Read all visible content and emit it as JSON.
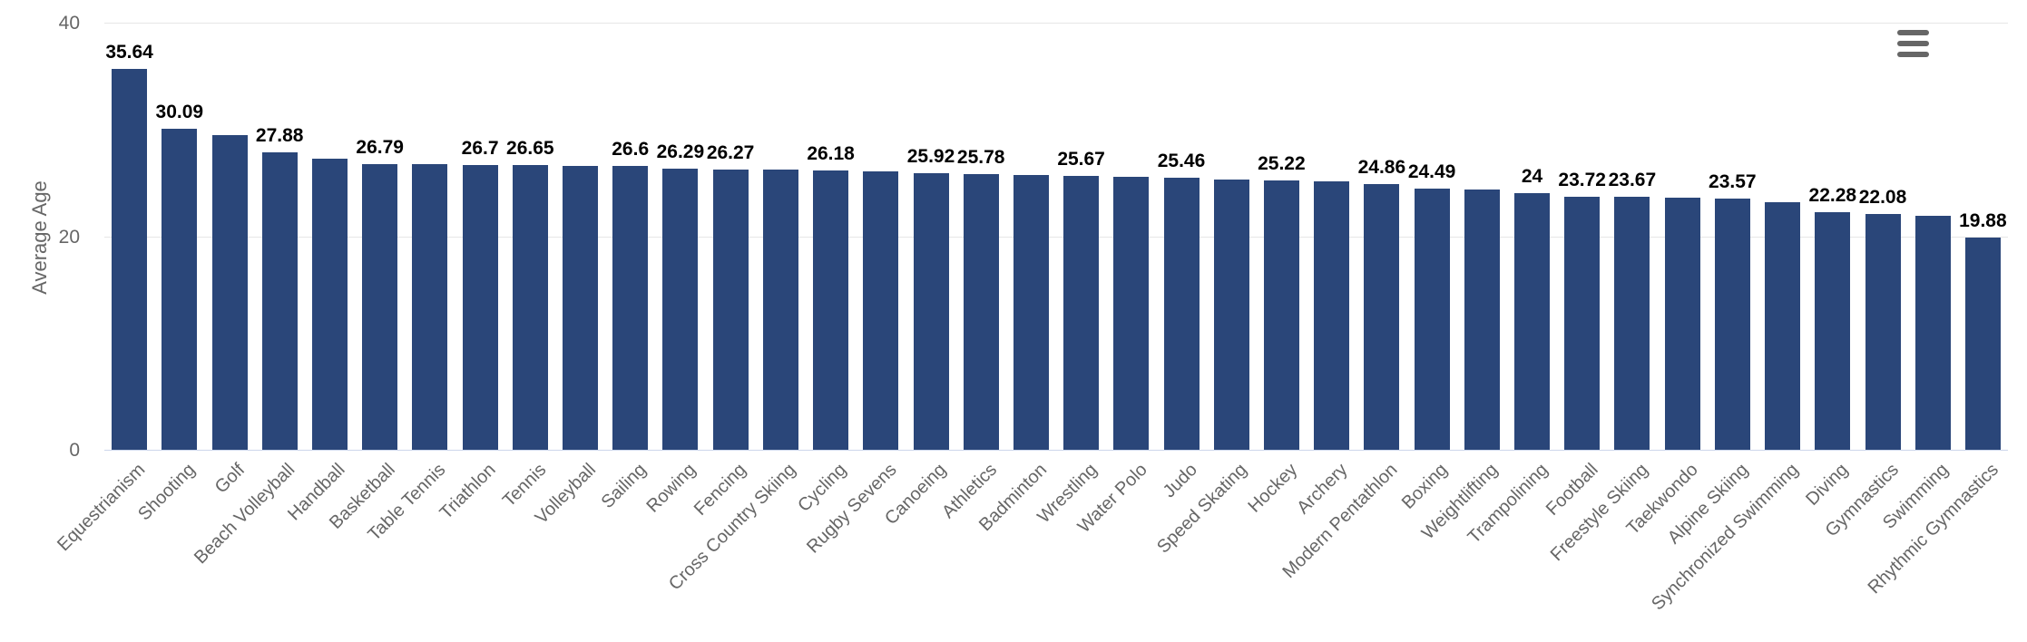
{
  "chart_data": {
    "type": "bar",
    "title": "",
    "xlabel": "",
    "ylabel": "Average Age",
    "ylim": [
      0,
      40
    ],
    "yticks": [
      0,
      20,
      40
    ],
    "grid": true,
    "legend": false,
    "categories": [
      "Equestrianism",
      "Shooting",
      "Golf",
      "Beach Volleyball",
      "Handball",
      "Basketball",
      "Table Tennis",
      "Triathlon",
      "Tennis",
      "Volleyball",
      "Sailing",
      "Rowing",
      "Fencing",
      "Cross Country Skiing",
      "Cycling",
      "Rugby Sevens",
      "Canoeing",
      "Athletics",
      "Badminton",
      "Wrestling",
      "Water Polo",
      "Judo",
      "Speed Skating",
      "Hockey",
      "Archery",
      "Modern Pentathlon",
      "Boxing",
      "Weightlifting",
      "Trampolining",
      "Football",
      "Freestyle Skiing",
      "Taekwondo",
      "Alpine Skiing",
      "Synchronized Swimming",
      "Diving",
      "Gymnastics",
      "Swimming",
      "Rhythmic Gymnastics"
    ],
    "values": [
      35.64,
      30.09,
      29.44,
      27.88,
      27.23,
      26.79,
      26.75,
      26.7,
      26.65,
      26.62,
      26.6,
      26.29,
      26.27,
      26.22,
      26.18,
      26.06,
      25.92,
      25.78,
      25.72,
      25.67,
      25.56,
      25.46,
      25.3,
      25.22,
      25.1,
      24.86,
      24.49,
      24.37,
      24,
      23.72,
      23.67,
      23.62,
      23.57,
      23.18,
      22.28,
      22.08,
      21.95,
      19.88
    ],
    "data_labels": [
      "35.64",
      "30.09",
      null,
      "27.88",
      null,
      "26.79",
      null,
      "26.7",
      "26.65",
      null,
      "26.6",
      "26.29",
      "26.27",
      null,
      "26.18",
      null,
      "25.92",
      "25.78",
      null,
      "25.67",
      null,
      "25.46",
      null,
      "25.22",
      null,
      "24.86",
      "24.49",
      null,
      "24",
      "23.72",
      "23.67",
      null,
      "23.57",
      null,
      "22.28",
      "22.08",
      null,
      "19.88"
    ]
  },
  "colors": {
    "bar": "#2a4679",
    "grid": "#e6e6e6",
    "axis_line": "#ccd6eb",
    "axis_text": "#666666",
    "icon": "#666666"
  },
  "toolbar": {
    "menu_icon": "hamburger"
  }
}
